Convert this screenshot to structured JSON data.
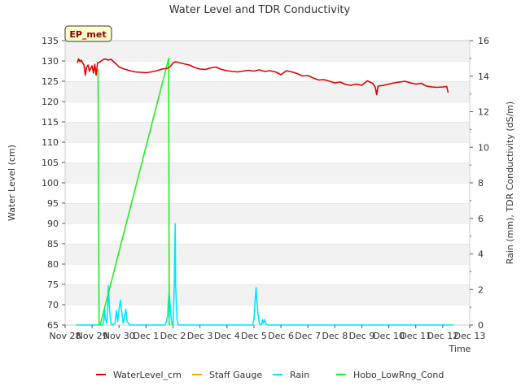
{
  "chart_data": {
    "type": "line",
    "title": "Water Level and TDR Conductivity",
    "badge": "EP_met",
    "xlabel": "Time",
    "ylabel_left": "Water Level (cm)",
    "ylabel_right": "Rain (mm), TDR Conductivity (dS/m)",
    "x_ticks": [
      "Nov 28",
      "Nov 29",
      "Nov 30",
      "Dec 1",
      "Dec 2",
      "Dec 3",
      "Dec 4",
      "Dec 5",
      "Dec 6",
      "Dec 7",
      "Dec 8",
      "Dec 9",
      "Dec 10",
      "Dec 11",
      "Dec 12",
      "Dec 13"
    ],
    "xlim_days": [
      0,
      15
    ],
    "ylim_left": [
      65,
      135
    ],
    "y_ticks_left": [
      65,
      70,
      75,
      80,
      85,
      90,
      95,
      100,
      105,
      110,
      115,
      120,
      125,
      130,
      135
    ],
    "ylim_right": [
      0,
      16
    ],
    "y_ticks_right": [
      0,
      2,
      4,
      6,
      8,
      10,
      12,
      14,
      16
    ],
    "grid": "horizontal bands",
    "legend_position": "bottom",
    "series": [
      {
        "name": "WaterLevel_cm",
        "color": "#dd0000",
        "axis": "left",
        "x": [
          0.45,
          0.5,
          0.55,
          0.6,
          0.65,
          0.7,
          0.75,
          0.8,
          0.85,
          0.9,
          0.95,
          1.0,
          1.05,
          1.1,
          1.15,
          1.2,
          1.3,
          1.4,
          1.5,
          1.6,
          1.7,
          1.8,
          1.9,
          2.0,
          2.2,
          2.4,
          2.6,
          2.8,
          3.0,
          3.2,
          3.4,
          3.6,
          3.8,
          3.9,
          4.0,
          4.1,
          4.2,
          4.4,
          4.6,
          4.8,
          5.0,
          5.2,
          5.4,
          5.6,
          5.8,
          6.0,
          6.2,
          6.4,
          6.6,
          6.8,
          7.0,
          7.2,
          7.4,
          7.6,
          7.8,
          8.0,
          8.2,
          8.4,
          8.6,
          8.8,
          9.0,
          9.2,
          9.4,
          9.6,
          9.8,
          10.0,
          10.2,
          10.4,
          10.6,
          10.8,
          11.0,
          11.2,
          11.4,
          11.5,
          11.55,
          11.6,
          11.8,
          12.0,
          12.2,
          12.4,
          12.6,
          12.8,
          13.0,
          13.2,
          13.4,
          13.6,
          13.8,
          14.0,
          14.15,
          14.2
        ],
        "values": [
          129.5,
          130.5,
          129.8,
          130.2,
          129.5,
          129.0,
          126.5,
          128.5,
          129.0,
          127.5,
          128.2,
          128.8,
          127.0,
          129.2,
          126.5,
          129.5,
          129.8,
          130.3,
          130.5,
          130.2,
          130.4,
          129.8,
          129.2,
          128.5,
          128.0,
          127.6,
          127.3,
          127.2,
          127.1,
          127.3,
          127.6,
          128.0,
          128.2,
          128.6,
          129.5,
          129.8,
          129.6,
          129.3,
          129.0,
          128.4,
          128.0,
          127.9,
          128.3,
          128.5,
          127.9,
          127.6,
          127.4,
          127.3,
          127.5,
          127.7,
          127.5,
          127.8,
          127.4,
          127.6,
          127.3,
          126.6,
          127.6,
          127.3,
          126.9,
          126.3,
          126.4,
          125.8,
          125.3,
          125.4,
          125.0,
          124.6,
          124.8,
          124.2,
          124.0,
          124.3,
          124.0,
          125.1,
          124.5,
          123.5,
          121.7,
          123.8,
          124.0,
          124.3,
          124.6,
          124.8,
          125.0,
          124.6,
          124.3,
          124.5,
          123.8,
          123.6,
          123.5,
          123.6,
          123.7,
          122.2
        ]
      },
      {
        "name": "Staff Gauge",
        "color": "#ffa500",
        "axis": "left",
        "x": [],
        "values": []
      },
      {
        "name": "Rain",
        "color": "#00e5ff",
        "axis": "right",
        "x": [
          0.4,
          1.4,
          1.44,
          1.46,
          1.5,
          1.55,
          1.58,
          1.6,
          1.65,
          1.7,
          1.75,
          1.85,
          1.9,
          1.95,
          2.0,
          2.05,
          2.1,
          2.15,
          2.2,
          2.25,
          2.3,
          2.35,
          2.4,
          2.5,
          3.0,
          3.5,
          3.7,
          3.75,
          3.8,
          3.82,
          3.85,
          3.9,
          3.95,
          4.0,
          4.02,
          4.05,
          4.08,
          4.1,
          4.15,
          4.2,
          4.3,
          5.0,
          6.0,
          6.95,
          7.0,
          7.03,
          7.05,
          7.08,
          7.1,
          7.15,
          7.2,
          7.25,
          7.3,
          7.32,
          7.35,
          7.4,
          7.45,
          7.5,
          8.0,
          9.0,
          10.0,
          11.0,
          12.0,
          13.0,
          14.0,
          14.4
        ],
        "values": [
          0,
          0,
          0.3,
          0.9,
          0.3,
          0.1,
          1.2,
          2.2,
          0.8,
          0.1,
          0,
          0.1,
          0.8,
          0.2,
          0.9,
          1.4,
          0.7,
          0.1,
          0.4,
          0.9,
          0.2,
          0.1,
          0,
          0,
          0,
          0,
          0,
          0.2,
          0.5,
          1.2,
          1.8,
          1.0,
          0.1,
          0,
          0.9,
          2.5,
          5.7,
          2.2,
          0.3,
          0,
          0,
          0,
          0,
          0,
          0.3,
          1.0,
          1.5,
          2.1,
          1.6,
          0.6,
          0.1,
          0,
          0.1,
          0.3,
          0.1,
          0.3,
          0.05,
          0,
          0,
          0,
          0,
          0,
          0,
          0,
          0,
          0
        ]
      },
      {
        "name": "Hobo_LowRng_Cond",
        "color": "#22ee22",
        "axis": "right",
        "x": [
          1.22,
          1.26,
          1.3,
          3.84,
          3.86,
          3.9
        ],
        "values": [
          14.4,
          0.05,
          0,
          15.0,
          0.05,
          0
        ]
      }
    ]
  }
}
